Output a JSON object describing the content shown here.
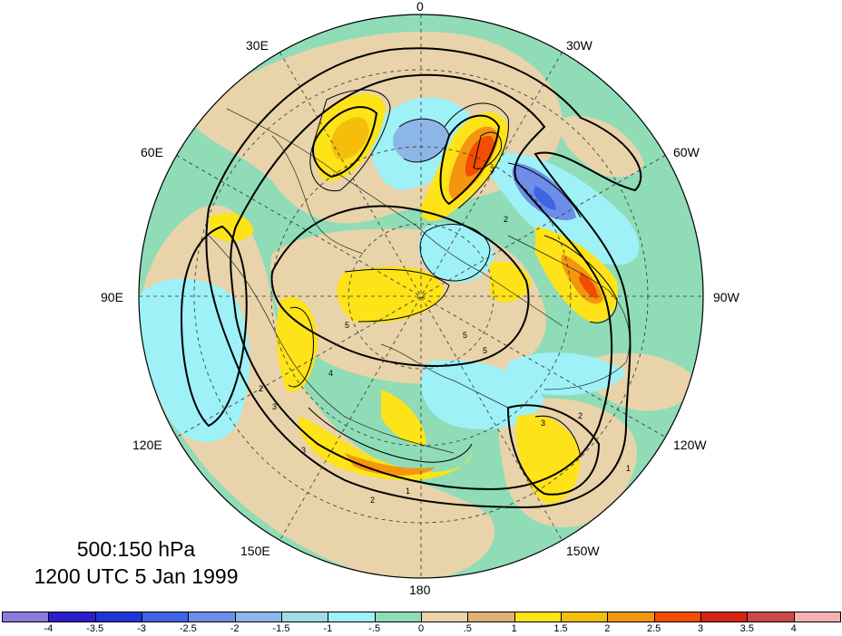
{
  "caption": {
    "levels": "500:150 hPa",
    "time": "1200 UTC 5 Jan 1999"
  },
  "map": {
    "projection": "north-polar-stereographic",
    "longitude_labels": [
      {
        "key": "0",
        "text": "0"
      },
      {
        "key": "30W",
        "text": "30W"
      },
      {
        "key": "60W",
        "text": "60W"
      },
      {
        "key": "90W",
        "text": "90W"
      },
      {
        "key": "120W",
        "text": "120W"
      },
      {
        "key": "150W",
        "text": "150W"
      },
      {
        "key": "180",
        "text": "180"
      },
      {
        "key": "150E",
        "text": "150E"
      },
      {
        "key": "120E",
        "text": "120E"
      },
      {
        "key": "90E",
        "text": "90E"
      },
      {
        "key": "60E",
        "text": "60E"
      },
      {
        "key": "30E",
        "text": "30E"
      }
    ],
    "contour_labels": [
      "2",
      "3",
      "4",
      "5",
      "2",
      "3",
      "5",
      "1",
      "2",
      "3",
      "5",
      "2",
      "1",
      "3"
    ]
  },
  "colorbar": {
    "colors": [
      "#8b7be0",
      "#2b1ec8",
      "#2035d6",
      "#3f64e6",
      "#6d8ee8",
      "#8db6e8",
      "#9fdce6",
      "#9ef1f6",
      "#8fdcb7",
      "#e8d3aa",
      "#dfb273",
      "#fde317",
      "#f5be0b",
      "#f49510",
      "#f24d00",
      "#d62611",
      "#c94a4a",
      "#f7b0b2"
    ],
    "tick_labels": [
      "-4",
      "-3.5",
      "-3",
      "-2.5",
      "-2",
      "-1.5",
      "-1",
      "-.5",
      "0",
      ".5",
      "1",
      "1.5",
      "2",
      "2.5",
      "3",
      "3.5",
      "4"
    ]
  }
}
